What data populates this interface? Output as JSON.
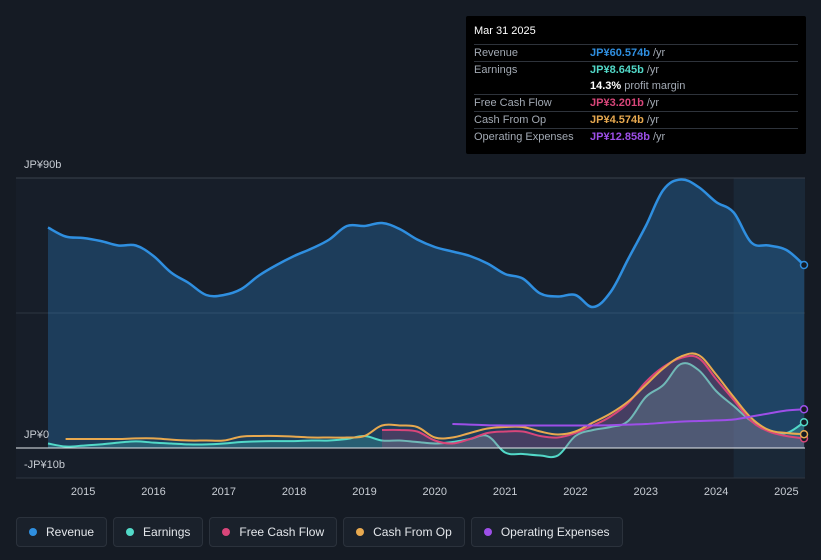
{
  "tooltip": {
    "date": "Mar 31 2025",
    "rows": {
      "revenue": {
        "label": "Revenue",
        "value": "JP¥60.574b",
        "unit": "/yr"
      },
      "earnings": {
        "label": "Earnings",
        "value": "JP¥8.645b",
        "unit": "/yr"
      },
      "margin": {
        "value": "14.3%",
        "unit": "profit margin"
      },
      "fcf": {
        "label": "Free Cash Flow",
        "value": "JP¥3.201b",
        "unit": "/yr"
      },
      "cfo": {
        "label": "Cash From Op",
        "value": "JP¥4.574b",
        "unit": "/yr"
      },
      "opex": {
        "label": "Operating Expenses",
        "value": "JP¥12.858b",
        "unit": "/yr"
      }
    }
  },
  "legend": {
    "revenue": "Revenue",
    "earnings": "Earnings",
    "fcf": "Free Cash Flow",
    "cfo": "Cash From Op",
    "opex": "Operating Expenses"
  },
  "colors": {
    "revenue": "#2f8fe0",
    "earnings": "#52d9c8",
    "fcf": "#d9467a",
    "cfo": "#e8a94f",
    "opex": "#9d4fe8"
  },
  "chart_data": {
    "type": "area",
    "title": "",
    "units": "JP¥ billions",
    "ylim": [
      -10,
      90
    ],
    "y_ticks": [
      {
        "value": 90,
        "label": "JP¥90b"
      },
      {
        "value": 0,
        "label": "JP¥0"
      },
      {
        "value": -10,
        "label": "-JP¥10b"
      }
    ],
    "xlim": [
      2014.5,
      2025.25
    ],
    "x_ticks": [
      "2015",
      "2016",
      "2017",
      "2018",
      "2019",
      "2020",
      "2021",
      "2022",
      "2023",
      "2024",
      "2025"
    ],
    "forecast_start": 2024.25,
    "series": [
      {
        "key": "revenue",
        "name": "Revenue",
        "fill": true,
        "x": [
          2014.5,
          2014.75,
          2015.0,
          2015.25,
          2015.5,
          2015.75,
          2016.0,
          2016.25,
          2016.5,
          2016.75,
          2017.0,
          2017.25,
          2017.5,
          2017.75,
          2018.0,
          2018.25,
          2018.5,
          2018.75,
          2019.0,
          2019.25,
          2019.5,
          2019.75,
          2020.0,
          2020.25,
          2020.5,
          2020.75,
          2021.0,
          2021.25,
          2021.5,
          2021.75,
          2022.0,
          2022.25,
          2022.5,
          2022.75,
          2023.0,
          2023.25,
          2023.5,
          2023.75,
          2024.0,
          2024.25,
          2024.5,
          2024.75,
          2025.0,
          2025.25
        ],
        "y": [
          73.5,
          70.5,
          70,
          69,
          67.5,
          67.5,
          64,
          58.5,
          55,
          51,
          51,
          53,
          57.5,
          61,
          64,
          66.5,
          69.5,
          74,
          74,
          75,
          73,
          69.5,
          67,
          65.5,
          64,
          61.5,
          58,
          56.5,
          51.5,
          50.5,
          51,
          47,
          52,
          63,
          74,
          86,
          89.5,
          87,
          82,
          78.5,
          68.5,
          67.5,
          66,
          61
        ]
      },
      {
        "key": "earnings",
        "name": "Earnings",
        "fill": true,
        "x": [
          2014.5,
          2014.75,
          2015.0,
          2015.25,
          2015.5,
          2015.75,
          2016.0,
          2016.25,
          2016.5,
          2016.75,
          2017.0,
          2017.25,
          2017.5,
          2017.75,
          2018.0,
          2018.25,
          2018.5,
          2018.75,
          2019.0,
          2019.25,
          2019.5,
          2019.75,
          2020.0,
          2020.25,
          2020.5,
          2020.75,
          2021.0,
          2021.25,
          2021.5,
          2021.75,
          2022.0,
          2022.25,
          2022.5,
          2022.75,
          2023.0,
          2023.25,
          2023.5,
          2023.75,
          2024.0,
          2024.25,
          2024.5,
          2024.75,
          2025.0,
          2025.25
        ],
        "y": [
          1.5,
          0.5,
          0.8,
          1.2,
          1.8,
          2.2,
          1.8,
          1.5,
          1.2,
          1.2,
          1.5,
          2,
          2.2,
          2.3,
          2.3,
          2.5,
          2.5,
          3,
          4,
          2.5,
          2.5,
          2,
          1.5,
          2,
          3,
          4,
          -1.5,
          -2,
          -2.5,
          -2.5,
          4,
          6,
          7,
          9,
          17,
          21,
          28,
          26,
          19,
          14,
          9,
          6,
          5,
          8.6
        ]
      },
      {
        "key": "fcf",
        "name": "Free Cash Flow",
        "fill": true,
        "x": [
          2019.25,
          2019.5,
          2019.75,
          2020.0,
          2020.25,
          2020.5,
          2020.75,
          2021.0,
          2021.25,
          2021.5,
          2021.75,
          2022.0,
          2022.25,
          2022.5,
          2022.75,
          2023.0,
          2023.25,
          2023.5,
          2023.75,
          2024.0,
          2024.25,
          2024.5,
          2024.75,
          2025.0,
          2025.25
        ],
        "y": [
          6,
          6,
          5.5,
          2.5,
          1.5,
          3,
          5,
          5.5,
          5.5,
          4,
          3.5,
          5,
          7.5,
          10.5,
          15,
          22,
          27,
          30,
          30,
          23,
          16,
          9,
          5.5,
          4,
          3.2
        ]
      },
      {
        "key": "cfo",
        "name": "Cash From Op",
        "fill": false,
        "x": [
          2014.75,
          2015.0,
          2015.25,
          2015.5,
          2015.75,
          2016.0,
          2016.25,
          2016.5,
          2016.75,
          2017.0,
          2017.25,
          2017.5,
          2017.75,
          2018.0,
          2018.25,
          2018.5,
          2018.75,
          2019.0,
          2019.25,
          2019.5,
          2019.75,
          2020.0,
          2020.25,
          2020.5,
          2020.75,
          2021.0,
          2021.25,
          2021.5,
          2021.75,
          2022.0,
          2022.25,
          2022.5,
          2022.75,
          2023.0,
          2023.25,
          2023.5,
          2023.75,
          2024.0,
          2024.25,
          2024.5,
          2024.75,
          2025.0,
          2025.25
        ],
        "y": [
          3,
          3,
          3,
          3,
          3.2,
          3.2,
          2.8,
          2.5,
          2.5,
          2.5,
          3.8,
          4,
          4,
          3.8,
          3.5,
          3.5,
          3.5,
          4,
          7.5,
          7.5,
          7,
          3.5,
          3.5,
          5,
          6.5,
          7,
          7,
          5.5,
          4.5,
          5.5,
          8.5,
          11.5,
          15.5,
          21,
          26.5,
          30.5,
          31,
          24.5,
          17,
          10,
          6,
          5,
          4.6
        ]
      },
      {
        "key": "opex",
        "name": "Operating Expenses",
        "fill": false,
        "x": [
          2020.25,
          2020.5,
          2020.75,
          2021.0,
          2021.25,
          2021.5,
          2021.75,
          2022.0,
          2022.25,
          2022.5,
          2022.75,
          2023.0,
          2023.25,
          2023.5,
          2023.75,
          2024.0,
          2024.25,
          2024.5,
          2024.75,
          2025.0,
          2025.25
        ],
        "y": [
          8,
          7.8,
          7.6,
          7.5,
          7.5,
          7.5,
          7.5,
          7.5,
          7.5,
          7.6,
          7.8,
          8,
          8.4,
          8.8,
          9,
          9.2,
          9.5,
          10.5,
          11.5,
          12.5,
          12.9
        ]
      }
    ]
  }
}
